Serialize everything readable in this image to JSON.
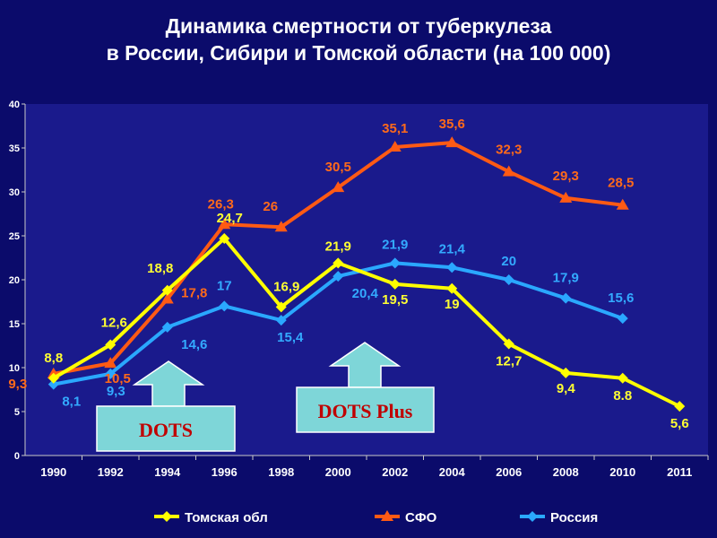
{
  "title_line1": "Динамика смертности от туберкулеза",
  "title_line2": "в России, Сибири и Томской области (на 100 000)",
  "colors": {
    "background": "#0b0b6b",
    "plot_area": "#1a1a8c",
    "tomsk": "#ffff00",
    "sfo": "#ff5a14",
    "russia": "#2aa8ff",
    "label_tomsk": "#ffff33",
    "label_sfo": "#ff6a1a",
    "label_russia": "#33aaff",
    "callout_box": "#7ed6d8",
    "callout_text": "#c00000"
  },
  "chart_data": {
    "type": "line",
    "ylim": [
      0,
      40
    ],
    "yticks": [
      0,
      5,
      10,
      15,
      20,
      25,
      30,
      35,
      40
    ],
    "grid": false,
    "legend_position": "bottom",
    "categories": [
      "1990",
      "1992",
      "1994",
      "1996",
      "1998",
      "2000",
      "2002",
      "2004",
      "2006",
      "2008",
      "2010",
      "2011"
    ],
    "series": [
      {
        "key": "tomsk",
        "name": "Томская обл",
        "values": [
          8.8,
          12.6,
          18.8,
          24.7,
          16.9,
          21.9,
          19.5,
          19,
          12.7,
          9.4,
          8.8,
          5.6
        ],
        "labels": [
          "8,8",
          "12,6",
          "18,8",
          "24,7",
          "16,9",
          "21,9",
          "19,5",
          "19",
          "12,7",
          "9,4",
          "8.8",
          "5,6"
        ]
      },
      {
        "key": "sfo",
        "name": "СФО",
        "values": [
          9.3,
          10.5,
          17.8,
          26.3,
          26,
          30.5,
          35.1,
          35.6,
          32.3,
          29.3,
          28.5,
          null
        ],
        "labels": [
          "9,3",
          "10,5",
          "17,8",
          "26,3",
          "26",
          "30,5",
          "35,1",
          "35,6",
          "32,3",
          "29,3",
          "28,5",
          null
        ]
      },
      {
        "key": "russia",
        "name": "Россия",
        "values": [
          8.1,
          9.3,
          14.6,
          17,
          15.4,
          20.4,
          21.9,
          21.4,
          20,
          17.9,
          15.6,
          null
        ],
        "labels": [
          "8,1",
          "9,3",
          "14,6",
          "17",
          "15,4",
          "20,4",
          "21,9",
          "21,4",
          "20",
          "17,9",
          "15,6",
          null
        ]
      }
    ],
    "annotations": [
      {
        "text": "DOTS",
        "at_category": "1994"
      },
      {
        "text": "DOTS Plus",
        "at_category": "2000"
      }
    ]
  }
}
